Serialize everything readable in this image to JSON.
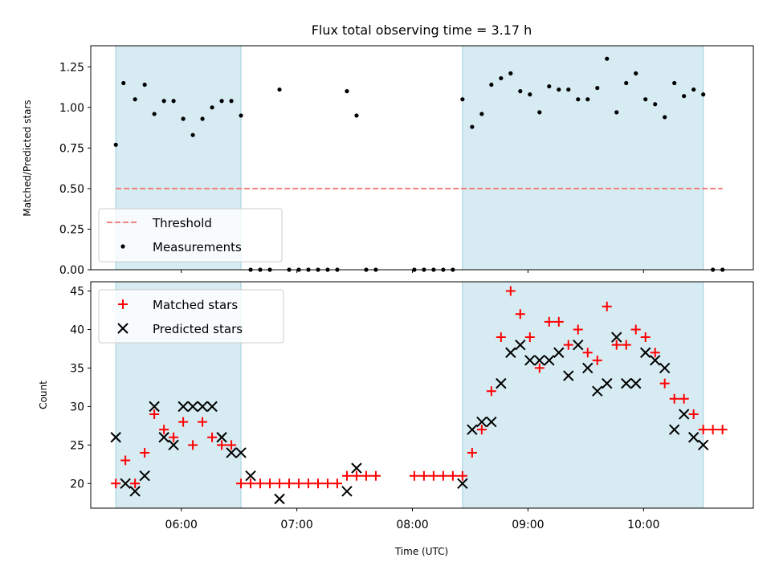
{
  "chart_data": [
    {
      "type": "scatter",
      "title": "Flux total observing time = 3.17 h",
      "xlabel": "",
      "ylabel": "Matched/Predicted stars",
      "x_unit": "time (UTC)",
      "xlim": [
        "05:13",
        "10:57"
      ],
      "ylim": [
        0,
        1.38
      ],
      "yticks": [
        "0.00",
        "0.25",
        "0.50",
        "0.75",
        "1.00",
        "1.25"
      ],
      "x_tick_positions": [
        "06:00",
        "07:00",
        "08:00",
        "09:00",
        "10:00"
      ],
      "shaded_intervals": [
        [
          "05:26",
          "06:31"
        ],
        [
          "08:26",
          "10:31"
        ]
      ],
      "threshold": {
        "name": "Threshold",
        "y": 0.5,
        "x_range": [
          "05:26",
          "10:41"
        ],
        "color": "#f08080"
      },
      "legend_position": "lower-left",
      "series": [
        {
          "name": "Measurements",
          "color": "#000000",
          "marker": "dot",
          "points": [
            [
              "05:26",
              0.77
            ],
            [
              "05:30",
              1.15
            ],
            [
              "05:36",
              1.05
            ],
            [
              "05:41",
              1.14
            ],
            [
              "05:46",
              0.96
            ],
            [
              "05:51",
              1.04
            ],
            [
              "05:56",
              1.04
            ],
            [
              "06:01",
              0.93
            ],
            [
              "06:06",
              0.83
            ],
            [
              "06:11",
              0.93
            ],
            [
              "06:16",
              1.0
            ],
            [
              "06:21",
              1.04
            ],
            [
              "06:26",
              1.04
            ],
            [
              "06:31",
              0.95
            ],
            [
              "06:36",
              0
            ],
            [
              "06:41",
              0
            ],
            [
              "06:46",
              0
            ],
            [
              "06:51",
              1.11
            ],
            [
              "06:56",
              0
            ],
            [
              "07:01",
              0
            ],
            [
              "07:06",
              0
            ],
            [
              "07:11",
              0
            ],
            [
              "07:16",
              0
            ],
            [
              "07:21",
              0
            ],
            [
              "07:26",
              1.1
            ],
            [
              "07:31",
              0.95
            ],
            [
              "07:36",
              0
            ],
            [
              "07:41",
              0
            ],
            [
              "08:01",
              0
            ],
            [
              "08:06",
              0
            ],
            [
              "08:11",
              0
            ],
            [
              "08:16",
              0
            ],
            [
              "08:21",
              0
            ],
            [
              "08:26",
              1.05
            ],
            [
              "08:31",
              0.88
            ],
            [
              "08:36",
              0.96
            ],
            [
              "08:41",
              1.14
            ],
            [
              "08:46",
              1.18
            ],
            [
              "08:51",
              1.21
            ],
            [
              "08:56",
              1.1
            ],
            [
              "09:01",
              1.08
            ],
            [
              "09:06",
              0.97
            ],
            [
              "09:11",
              1.13
            ],
            [
              "09:16",
              1.11
            ],
            [
              "09:21",
              1.11
            ],
            [
              "09:26",
              1.05
            ],
            [
              "09:31",
              1.05
            ],
            [
              "09:36",
              1.12
            ],
            [
              "09:41",
              1.3
            ],
            [
              "09:46",
              0.97
            ],
            [
              "09:51",
              1.15
            ],
            [
              "09:56",
              1.21
            ],
            [
              "10:01",
              1.05
            ],
            [
              "10:06",
              1.02
            ],
            [
              "10:11",
              0.94
            ],
            [
              "10:16",
              1.15
            ],
            [
              "10:21",
              1.07
            ],
            [
              "10:26",
              1.11
            ],
            [
              "10:31",
              1.08
            ],
            [
              "10:36",
              0
            ],
            [
              "10:41",
              0
            ]
          ]
        }
      ]
    },
    {
      "type": "scatter",
      "title": "",
      "xlabel": "Time (UTC)",
      "ylabel": "Count",
      "xlim": [
        "05:13",
        "10:57"
      ],
      "ylim": [
        16.8,
        46.2
      ],
      "yticks": [
        "20",
        "25",
        "30",
        "35",
        "40",
        "45"
      ],
      "xticks": [
        "06:00",
        "07:00",
        "08:00",
        "09:00",
        "10:00"
      ],
      "shaded_intervals": [
        [
          "05:26",
          "06:31"
        ],
        [
          "08:26",
          "10:31"
        ]
      ],
      "legend_position": "upper-left",
      "series": [
        {
          "name": "Matched stars",
          "color": "#ff0000",
          "marker": "plus",
          "points": [
            [
              "05:26",
              20
            ],
            [
              "05:31",
              23
            ],
            [
              "05:36",
              20
            ],
            [
              "05:41",
              24
            ],
            [
              "05:46",
              29
            ],
            [
              "05:51",
              27
            ],
            [
              "05:56",
              26
            ],
            [
              "06:01",
              28
            ],
            [
              "06:06",
              25
            ],
            [
              "06:11",
              28
            ],
            [
              "06:16",
              26
            ],
            [
              "06:21",
              25
            ],
            [
              "06:26",
              25
            ],
            [
              "06:31",
              20
            ],
            [
              "06:36",
              20
            ],
            [
              "06:41",
              20
            ],
            [
              "06:46",
              20
            ],
            [
              "06:51",
              20
            ],
            [
              "06:56",
              20
            ],
            [
              "07:01",
              20
            ],
            [
              "07:06",
              20
            ],
            [
              "07:11",
              20
            ],
            [
              "07:16",
              20
            ],
            [
              "07:21",
              20
            ],
            [
              "07:26",
              21
            ],
            [
              "07:31",
              21
            ],
            [
              "07:36",
              21
            ],
            [
              "07:41",
              21
            ],
            [
              "08:01",
              21
            ],
            [
              "08:06",
              21
            ],
            [
              "08:11",
              21
            ],
            [
              "08:16",
              21
            ],
            [
              "08:21",
              21
            ],
            [
              "08:26",
              21
            ],
            [
              "08:31",
              24
            ],
            [
              "08:36",
              27
            ],
            [
              "08:41",
              32
            ],
            [
              "08:46",
              39
            ],
            [
              "08:51",
              45
            ],
            [
              "08:56",
              42
            ],
            [
              "09:01",
              39
            ],
            [
              "09:06",
              35
            ],
            [
              "09:11",
              41
            ],
            [
              "09:16",
              41
            ],
            [
              "09:21",
              38
            ],
            [
              "09:26",
              40
            ],
            [
              "09:31",
              37
            ],
            [
              "09:36",
              36
            ],
            [
              "09:41",
              43
            ],
            [
              "09:46",
              38
            ],
            [
              "09:51",
              38
            ],
            [
              "09:56",
              40
            ],
            [
              "10:01",
              39
            ],
            [
              "10:06",
              37
            ],
            [
              "10:11",
              33
            ],
            [
              "10:16",
              31
            ],
            [
              "10:21",
              31
            ],
            [
              "10:26",
              29
            ],
            [
              "10:31",
              27
            ],
            [
              "10:36",
              27
            ],
            [
              "10:41",
              27
            ]
          ]
        },
        {
          "name": "Predicted stars",
          "color": "#000000",
          "marker": "x",
          "points": [
            [
              "05:26",
              26
            ],
            [
              "05:31",
              20
            ],
            [
              "05:36",
              19
            ],
            [
              "05:41",
              21
            ],
            [
              "05:46",
              30
            ],
            [
              "05:51",
              26
            ],
            [
              "05:56",
              25
            ],
            [
              "06:01",
              30
            ],
            [
              "06:06",
              30
            ],
            [
              "06:11",
              30
            ],
            [
              "06:16",
              30
            ],
            [
              "06:21",
              26
            ],
            [
              "06:26",
              24
            ],
            [
              "06:31",
              24
            ],
            [
              "06:36",
              21
            ],
            [
              "06:51",
              18
            ],
            [
              "07:26",
              19
            ],
            [
              "07:31",
              22
            ],
            [
              "08:26",
              20
            ],
            [
              "08:31",
              27
            ],
            [
              "08:36",
              28
            ],
            [
              "08:41",
              28
            ],
            [
              "08:46",
              33
            ],
            [
              "08:51",
              37
            ],
            [
              "08:56",
              38
            ],
            [
              "09:01",
              36
            ],
            [
              "09:06",
              36
            ],
            [
              "09:11",
              36
            ],
            [
              "09:16",
              37
            ],
            [
              "09:21",
              34
            ],
            [
              "09:26",
              38
            ],
            [
              "09:31",
              35
            ],
            [
              "09:36",
              32
            ],
            [
              "09:41",
              33
            ],
            [
              "09:46",
              39
            ],
            [
              "09:51",
              33
            ],
            [
              "09:56",
              33
            ],
            [
              "10:01",
              37
            ],
            [
              "10:06",
              36
            ],
            [
              "10:11",
              35
            ],
            [
              "10:16",
              27
            ],
            [
              "10:21",
              29
            ],
            [
              "10:26",
              26
            ],
            [
              "10:31",
              25
            ]
          ]
        }
      ]
    }
  ]
}
